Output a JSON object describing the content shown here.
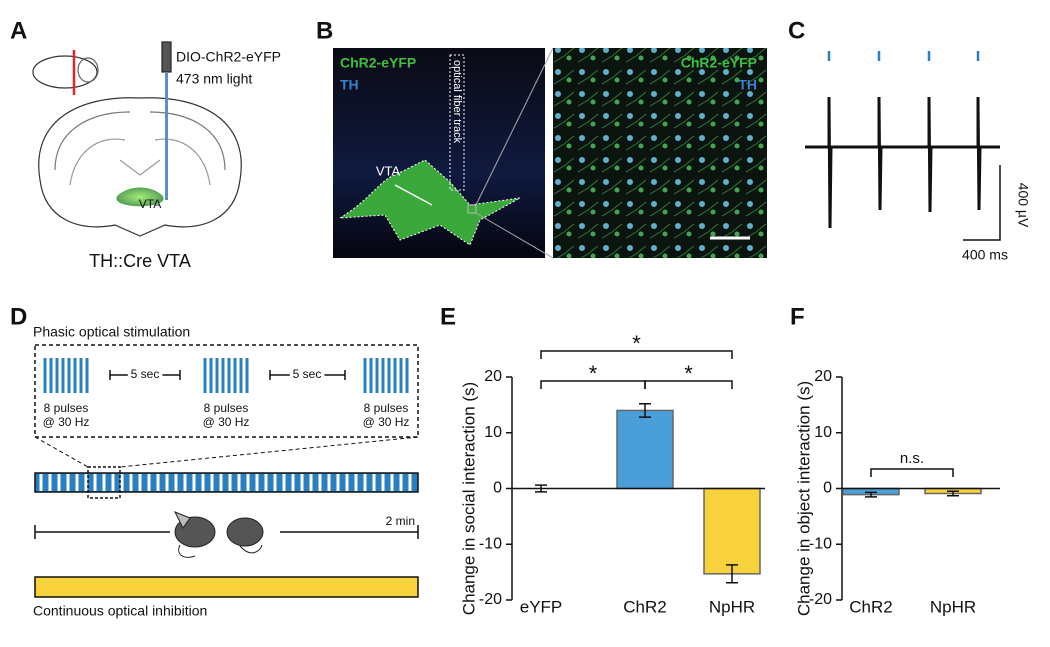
{
  "panel_labels": [
    "A",
    "B",
    "C",
    "D",
    "E",
    "F"
  ],
  "panel_a": {
    "construct": "DIO-ChR2-eYFP",
    "light": "473 nm light",
    "region": "VTA",
    "caption": "TH::Cre VTA"
  },
  "panel_b": {
    "label_chr2": "ChR2-eYFP",
    "label_th": "TH",
    "fiber": "optical fiber track",
    "region": "VTA",
    "inset_chr2": "ChR2-eYFP",
    "inset_th": "TH"
  },
  "panel_c": {
    "scale_voltage": "400 µV",
    "scale_time": "400 ms"
  },
  "panel_d": {
    "phasic_title": "Phasic optical stimulation",
    "pulse_groups": [
      {
        "line1": "8 pulses",
        "line2": "@ 30 Hz"
      },
      {
        "line1": "8 pulses",
        "line2": "@ 30 Hz"
      },
      {
        "line1": "8 pulses",
        "line2": "@ 30 Hz"
      }
    ],
    "gaps": [
      "5 sec",
      "5 sec"
    ],
    "duration": "2 min",
    "inhibition": "Continuous optical inhibition"
  },
  "chart_data": [
    {
      "type": "bar",
      "ylabel": "Change in social interaction (s)",
      "categories": [
        "eYFP",
        "ChR2",
        "NpHR"
      ],
      "values": [
        0,
        14,
        -15.3
      ],
      "errors": [
        0.6,
        1.2,
        1.6
      ],
      "colors": [
        "#ffffff",
        "#4a9fd8",
        "#f7d23a"
      ],
      "ylim": [
        -20,
        20
      ],
      "yticks": [
        -20,
        -10,
        0,
        10,
        20
      ],
      "comparisons": [
        {
          "pair": [
            "eYFP",
            "ChR2"
          ],
          "label": "*"
        },
        {
          "pair": [
            "ChR2",
            "NpHR"
          ],
          "label": "*"
        },
        {
          "pair": [
            "eYFP",
            "NpHR"
          ],
          "label": "*"
        }
      ]
    },
    {
      "type": "bar",
      "ylabel": "Change in object interaction (s)",
      "categories": [
        "ChR2",
        "NpHR"
      ],
      "values": [
        -1.1,
        -0.9
      ],
      "errors": [
        0.4,
        0.4
      ],
      "colors": [
        "#4a9fd8",
        "#f7d23a"
      ],
      "ylim": [
        -20,
        20
      ],
      "yticks": [
        -20,
        -10,
        0,
        10,
        20
      ],
      "comparisons": [
        {
          "pair": [
            "ChR2",
            "NpHR"
          ],
          "label": "n.s."
        }
      ]
    }
  ]
}
